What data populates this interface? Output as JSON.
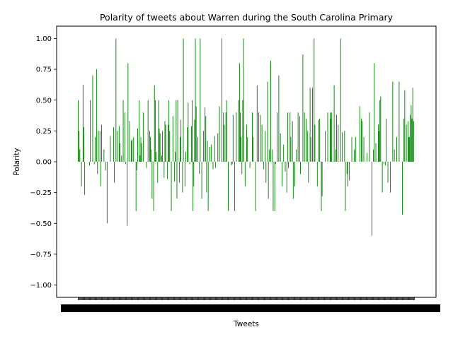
{
  "chart_data": {
    "type": "bar",
    "title": "Polarity of tweets about Warren during the South Carolina Primary",
    "xlabel": "Tweets",
    "ylabel": "Polarity",
    "ylim": [
      -1.1,
      1.1
    ],
    "yticks": [
      "1.00",
      "0.75",
      "0.50",
      "0.25",
      "0.00",
      "−0.25",
      "−0.50",
      "−0.75",
      "−1.00"
    ],
    "ytick_values": [
      1.0,
      0.75,
      0.5,
      0.25,
      0.0,
      -0.25,
      -0.5,
      -0.75,
      -1.0
    ],
    "bar_color": "#008000",
    "grid": false,
    "legend": "none",
    "x_tick_labels_overlapping": true,
    "values": [
      0.5,
      0.25,
      0.1,
      0.0,
      -0.2,
      0.0,
      0.625,
      0.28,
      -0.27,
      0.0,
      0.0,
      0.0,
      0.0,
      0.0,
      -0.03,
      0.5,
      0.0,
      0.0,
      0.7,
      0.0,
      -0.02,
      0.2,
      0.0,
      0.75,
      -0.1,
      0.25,
      0.0,
      0.25,
      -0.2,
      0.3,
      0.0,
      0.0,
      0.1,
      0.0,
      -0.07,
      0.0,
      -0.5,
      0.0,
      0.0,
      0.0,
      0.21,
      0.0,
      0.0,
      0.0,
      0.28,
      -0.17,
      0.0,
      1.0,
      0.0,
      0.25,
      0.0,
      0.29,
      0.15,
      0.0,
      0.05,
      0.0,
      0.5,
      0.0,
      0.4,
      -0.02,
      0.0,
      -0.52,
      0.8,
      0.0,
      0.33,
      0.0,
      0.17,
      0.18,
      0.0,
      0.2,
      0.0,
      0.0,
      -0.4,
      -0.07,
      0.27,
      0.0,
      0.5,
      0.05,
      0.2,
      0.15,
      0.0,
      0.4,
      0.0,
      0.0,
      0.0,
      -0.05,
      0.0,
      0.5,
      0.0,
      0.25,
      0.2,
      0.1,
      -0.3,
      0.0,
      -0.4,
      0.62,
      0.5,
      0.08,
      0.0,
      -0.17,
      0.5,
      0.27,
      0.23,
      0.0,
      0.05,
      0.25,
      0.0,
      -0.13,
      0.33,
      0.3,
      0.0,
      -0.14,
      0.3,
      0.5,
      0.25,
      0.0,
      -0.4,
      0.0,
      0.37,
      0.0,
      -0.16,
      0.08,
      0.5,
      -0.3,
      0.5,
      0.0,
      -0.17,
      0.2,
      0.34,
      0.0,
      -0.25,
      1.0,
      0.0,
      -0.2,
      0.08,
      0.0,
      0.28,
      0.48,
      0.0,
      -0.02,
      0.0,
      0.29,
      0.5,
      -0.4,
      -0.2,
      0.34,
      1.0,
      0.45,
      0.0,
      0.2,
      0.0,
      -0.1,
      1.0,
      0.0,
      -0.3,
      0.0,
      0.25,
      0.0,
      0.44,
      0.37,
      -0.25,
      0.17,
      -0.4,
      0.0,
      0.12,
      0.0,
      0.14,
      0.0,
      -0.06,
      0.0,
      0.21,
      -0.05,
      0.0,
      0.0,
      0.23,
      0.0,
      0.45,
      0.0,
      0.0,
      1.0,
      0.0,
      0.4,
      0.3,
      0.0,
      0.4,
      0.5,
      0.0,
      -0.4,
      0.0,
      0.0,
      0.0,
      -0.03,
      -0.02,
      0.38,
      0.0,
      -0.4,
      0.0,
      0.4,
      0.0,
      0.0,
      0.5,
      0.8,
      0.4,
      0.2,
      -0.1,
      0.5,
      1.0,
      0.0,
      -0.2,
      0.0,
      0.3,
      0.2,
      0.0,
      0.0,
      -0.05,
      0.0,
      0.0,
      0.4,
      0.2,
      0.0,
      0.0,
      -0.4,
      0.0,
      0.62,
      0.0,
      0.4,
      0.0,
      0.38,
      0.0,
      0.3,
      0.0,
      -0.06,
      0.0,
      0.25,
      -0.17,
      0.0,
      0.65,
      -0.3,
      0.1,
      0.0,
      0.82,
      0.0,
      0.1,
      -0.4,
      0.0,
      -0.4,
      -0.02,
      0.0,
      0.4,
      0.0,
      0.7,
      0.0,
      0.23,
      0.0,
      -0.2,
      0.0,
      0.14,
      0.0,
      -0.08,
      0.0,
      -0.25,
      0.4,
      -0.05,
      0.0,
      0.4,
      0.2,
      0.0,
      0.33,
      -0.3,
      0.0,
      -0.2,
      0.0,
      0.1,
      0.0,
      0.4,
      0.0,
      0.37,
      -0.1,
      0.0,
      0.0,
      0.87,
      0.0,
      0.4,
      0.0,
      0.35,
      0.0,
      0.25,
      -0.17,
      0.0,
      0.6,
      0.2,
      0.0,
      0.6,
      0.0,
      1.0,
      0.3,
      0.0,
      0.0,
      -0.2,
      0.0,
      0.34,
      0.35,
      0.0,
      -0.4,
      -0.28,
      0.0,
      0.0,
      0.0,
      0.25,
      0.0,
      0.0,
      0.4,
      0.0,
      0.0,
      0.4,
      0.35,
      0.4,
      0.0,
      0.0,
      0.62,
      0.0,
      0.1,
      0.38,
      0.0,
      0.3,
      0.0,
      0.0,
      1.0,
      0.0,
      0.24,
      0.0,
      0.0,
      0.25,
      -0.4,
      0.0,
      -0.1,
      -0.2,
      0.0,
      -0.15,
      0.0,
      0.0,
      0.2,
      0.0,
      0.0,
      0.1,
      0.0,
      0.2,
      0.0,
      0.0,
      0.0,
      0.0,
      0.45,
      0.0,
      0.35,
      0.33,
      0.0,
      0.2,
      0.0,
      0.0,
      0.0,
      0.07,
      0.0,
      0.0,
      0.4,
      0.0,
      0.0,
      -0.6,
      0.0,
      0.1,
      0.8,
      0.0,
      0.15,
      0.0,
      0.0,
      0.3,
      0.25,
      0.5,
      0.53,
      0.0,
      -0.25,
      0.0,
      -0.02,
      0.0,
      -0.03,
      0.35,
      0.0,
      -0.17,
      0.0,
      0.0,
      -0.25,
      0.0,
      0.0,
      0.65,
      0.0,
      0.1,
      0.0,
      0.0,
      0.2,
      0.0,
      0.0,
      0.65,
      0.0,
      0.0,
      0.0,
      -0.43,
      0.0,
      0.35,
      0.58,
      0.0,
      0.3,
      0.0,
      0.33,
      0.2,
      0.2,
      0.38,
      0.46,
      0.35,
      0.6,
      0.33,
      0.0
    ]
  }
}
